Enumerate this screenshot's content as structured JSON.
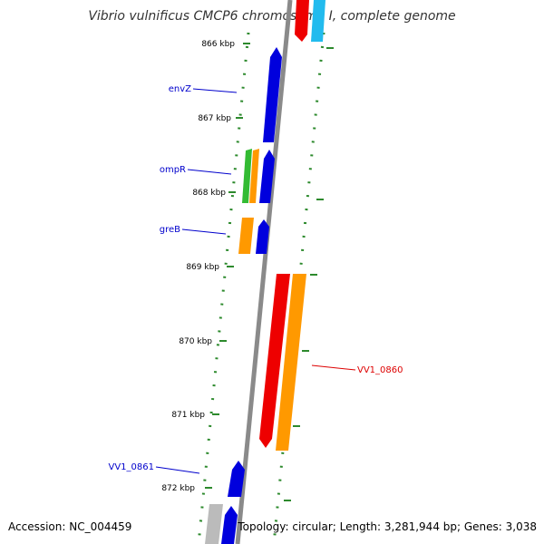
{
  "title": "Vibrio vulnificus CMCP6 chromosome I, complete genome",
  "accession": "Accession: NC_004459",
  "summary": "Topology: circular; Length: 3,281,944 bp; Genes: 3,038",
  "ticks": [
    {
      "label": "866 kbp"
    },
    {
      "label": "867 kbp"
    },
    {
      "label": "868 kbp"
    },
    {
      "label": "869 kbp"
    },
    {
      "label": "870 kbp"
    },
    {
      "label": "871 kbp"
    },
    {
      "label": "872 kbp"
    }
  ],
  "gene_labels": {
    "envZ": "envZ",
    "ompR": "ompR",
    "greB": "greB",
    "vv1_0860": "VV1_0860",
    "vv1_0861": "VV1_0861"
  },
  "colors": {
    "backbone": "#8a8a8a",
    "tick_dots": "#2d8a2d",
    "gene_blue": "#0000dd",
    "gene_red": "#ee0000",
    "gene_orange": "#ff9900",
    "gene_green": "#33bb33",
    "gene_cyan": "#22bbee",
    "gene_grey": "#bbbbbb",
    "label_blue": "#0000cc",
    "label_red": "#dd0000"
  }
}
